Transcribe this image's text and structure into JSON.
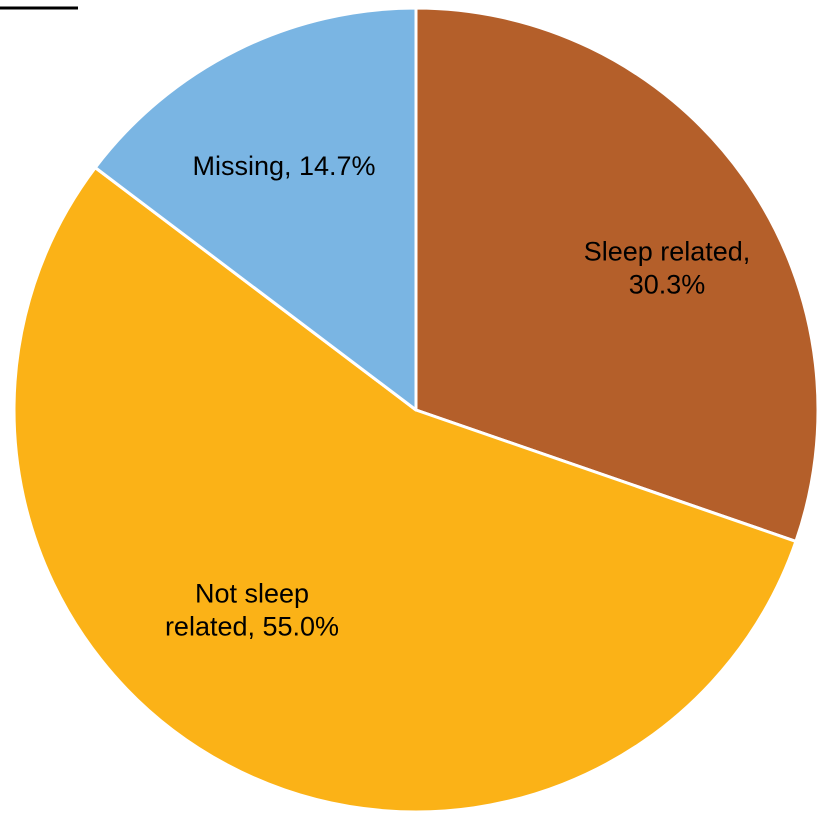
{
  "chart_data": {
    "type": "pie",
    "title": "",
    "legend": "none",
    "start_angle_deg": 0,
    "direction": "clockwise",
    "slices": [
      {
        "category": "Sleep related",
        "value": 30.3,
        "label_lines": [
          "Sleep related,",
          "30.3%"
        ],
        "color": "#B45F2A"
      },
      {
        "category": "Not sleep related",
        "value": 55.0,
        "label_lines": [
          "Not sleep",
          "related, 55.0%"
        ],
        "color": "#FBB217"
      },
      {
        "category": "Missing",
        "value": 14.7,
        "label_lines": [
          "Missing, 14.7%"
        ],
        "color": "#7AB5E3"
      }
    ]
  }
}
